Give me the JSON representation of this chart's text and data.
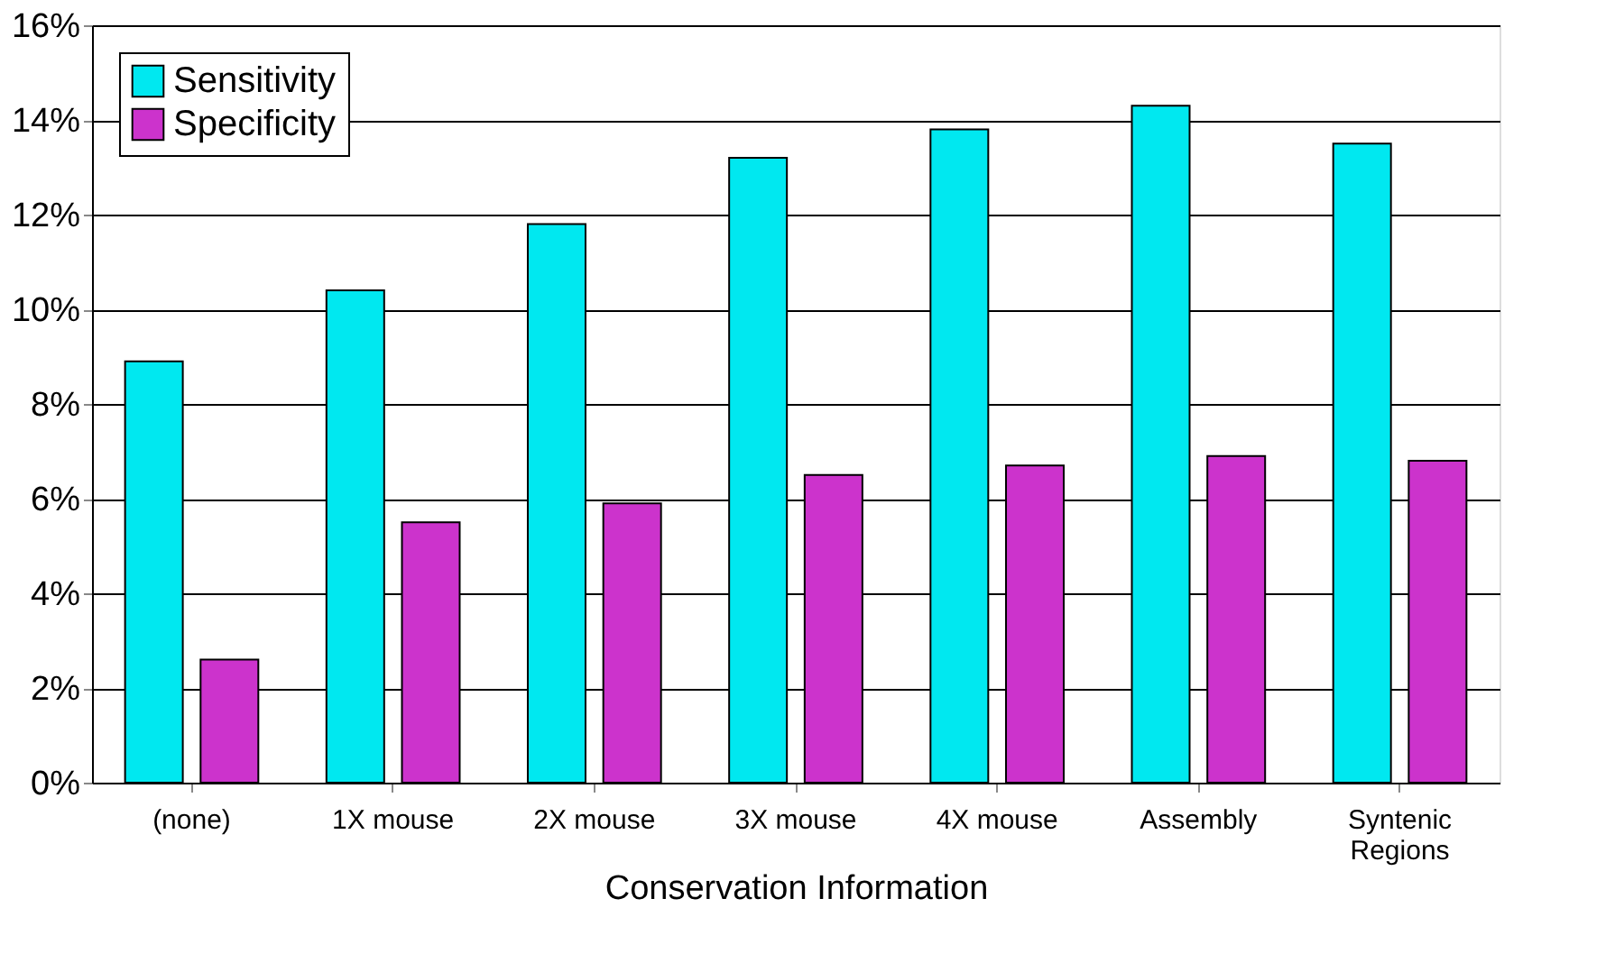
{
  "chart_data": {
    "type": "bar",
    "xlabel": "Conservation Information",
    "categories": [
      "(none)",
      "1X mouse",
      "2X mouse",
      "3X mouse",
      "4X mouse",
      "Assembly",
      "Syntenic\nRegions"
    ],
    "series": [
      {
        "name": "Sensitivity",
        "color": "#00e8f0",
        "values": [
          8.9,
          10.4,
          11.8,
          13.2,
          13.8,
          14.3,
          13.5
        ]
      },
      {
        "name": "Specificity",
        "color": "#cc33cc",
        "values": [
          2.6,
          5.5,
          5.9,
          6.5,
          6.7,
          6.9,
          6.8
        ]
      }
    ],
    "ylim": [
      0,
      16
    ],
    "yticks": [
      {
        "value": 0,
        "label": "0%"
      },
      {
        "value": 2,
        "label": "2%"
      },
      {
        "value": 4,
        "label": "4%"
      },
      {
        "value": 6,
        "label": "6%"
      },
      {
        "value": 8,
        "label": "8%"
      },
      {
        "value": 10,
        "label": "10%"
      },
      {
        "value": 12,
        "label": "12%"
      },
      {
        "value": 14,
        "label": "14%"
      },
      {
        "value": 16,
        "label": "16%"
      }
    ],
    "grid": "y",
    "legend": "top left"
  }
}
